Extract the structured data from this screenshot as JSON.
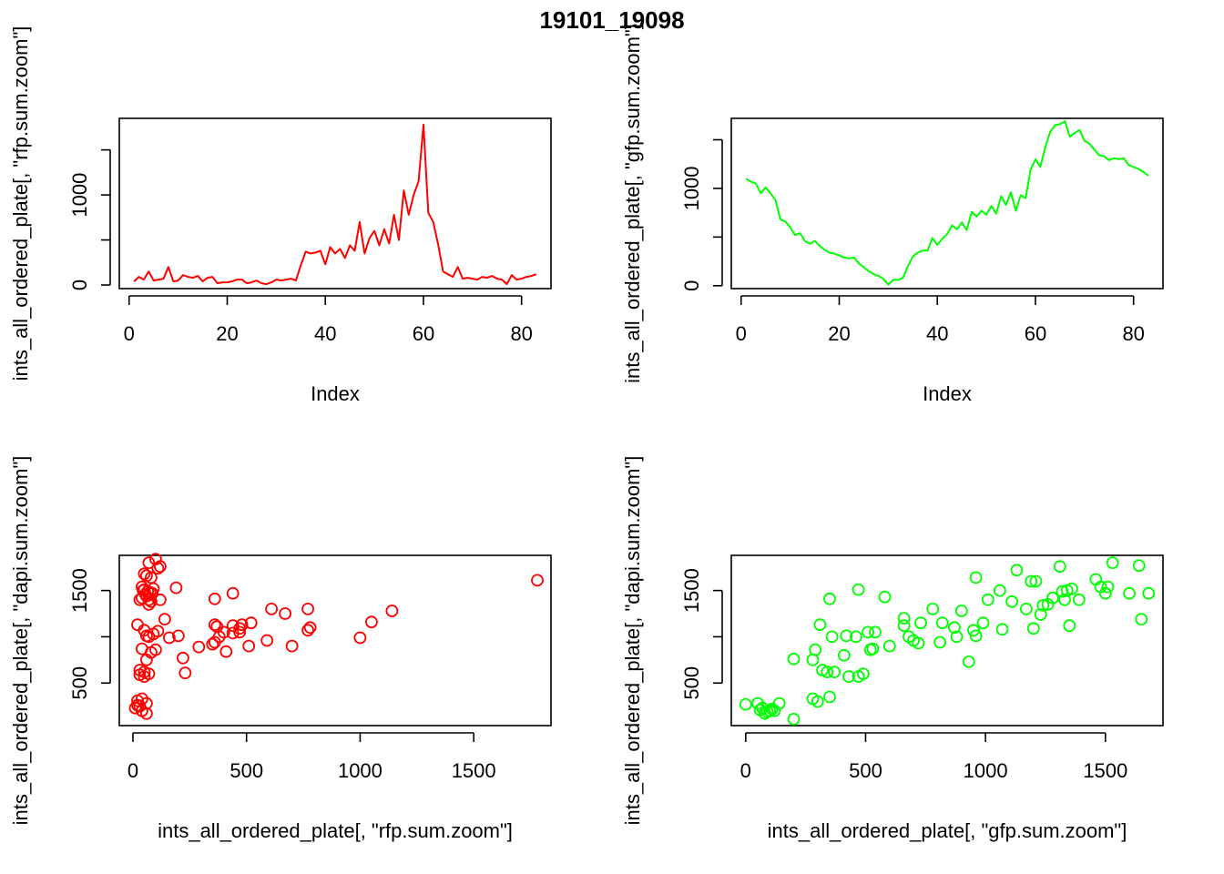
{
  "figure": {
    "title": "19101_19098"
  },
  "chart_data": [
    {
      "id": "rfp-line",
      "type": "line",
      "color": "#ff0000",
      "xlabel": "Index",
      "ylabel": "ints_all_ordered_plate[, \"rfp.sum.zoom\"]",
      "xlim": [
        -2,
        86
      ],
      "ylim": [
        -40,
        1850
      ],
      "xticks": [
        0,
        20,
        40,
        60,
        80
      ],
      "yticks": [
        0,
        1000
      ],
      "yticks_unlabeled": [
        500,
        1500
      ],
      "series": [
        {
          "x": [
            1,
            2,
            3,
            4,
            5,
            6,
            7,
            8,
            9,
            10,
            11,
            12,
            13,
            14,
            15,
            16,
            17,
            18,
            19,
            20,
            21,
            22,
            23,
            24,
            25,
            26,
            27,
            28,
            29,
            30,
            31,
            32,
            33,
            34,
            35,
            36,
            37,
            38,
            39,
            40,
            41,
            42,
            43,
            44,
            45,
            46,
            47,
            48,
            49,
            50,
            51,
            52,
            53,
            54,
            55,
            56,
            57,
            58,
            59,
            60,
            61,
            62,
            63,
            64,
            65,
            66,
            67,
            68,
            69,
            70,
            71,
            72,
            73,
            74,
            75,
            76,
            77,
            78,
            79,
            80,
            81,
            82,
            83
          ],
          "values": [
            40,
            90,
            60,
            150,
            50,
            60,
            70,
            200,
            40,
            50,
            110,
            90,
            80,
            100,
            40,
            80,
            90,
            20,
            30,
            30,
            40,
            60,
            60,
            20,
            30,
            50,
            20,
            10,
            30,
            60,
            50,
            60,
            70,
            50,
            220,
            370,
            350,
            360,
            380,
            230,
            420,
            350,
            400,
            300,
            440,
            380,
            700,
            350,
            520,
            600,
            440,
            620,
            460,
            780,
            500,
            1050,
            780,
            1000,
            1150,
            1780,
            800,
            700,
            450,
            150,
            120,
            90,
            200,
            70,
            80,
            70,
            60,
            90,
            80,
            100,
            70,
            60,
            10,
            110,
            60,
            70,
            90,
            100,
            120
          ]
        }
      ]
    },
    {
      "id": "gfp-line",
      "type": "line",
      "color": "#00ff00",
      "xlabel": "Index",
      "ylabel": "ints_all_ordered_plate[, \"gfp.sum.zoom\"]",
      "xlim": [
        -2,
        86
      ],
      "ylim": [
        -30,
        1720
      ],
      "xticks": [
        0,
        20,
        40,
        60,
        80
      ],
      "yticks": [
        0,
        1000
      ],
      "yticks_unlabeled": [
        500,
        1500
      ],
      "series": [
        {
          "x": [
            1,
            2,
            3,
            4,
            5,
            6,
            7,
            8,
            9,
            10,
            11,
            12,
            13,
            14,
            15,
            16,
            17,
            18,
            19,
            20,
            21,
            22,
            23,
            24,
            25,
            26,
            27,
            28,
            29,
            30,
            31,
            32,
            33,
            34,
            35,
            36,
            37,
            38,
            39,
            40,
            41,
            42,
            43,
            44,
            45,
            46,
            47,
            48,
            49,
            50,
            51,
            52,
            53,
            54,
            55,
            56,
            57,
            58,
            59,
            60,
            61,
            62,
            63,
            64,
            65,
            66,
            67,
            68,
            69,
            70,
            71,
            72,
            73,
            74,
            75,
            76,
            77,
            78,
            79,
            80,
            81,
            82,
            83
          ],
          "values": [
            1100,
            1070,
            1050,
            950,
            1010,
            950,
            880,
            680,
            660,
            600,
            520,
            540,
            460,
            430,
            460,
            410,
            370,
            340,
            330,
            310,
            290,
            280,
            290,
            230,
            190,
            150,
            120,
            100,
            70,
            10,
            60,
            60,
            80,
            200,
            300,
            340,
            360,
            360,
            490,
            420,
            480,
            530,
            620,
            580,
            650,
            570,
            760,
            710,
            770,
            730,
            820,
            740,
            920,
            830,
            960,
            770,
            930,
            900,
            1190,
            1300,
            1220,
            1420,
            1580,
            1650,
            1660,
            1690,
            1530,
            1570,
            1600,
            1490,
            1460,
            1400,
            1340,
            1330,
            1290,
            1310,
            1300,
            1310,
            1240,
            1220,
            1200,
            1170,
            1130
          ]
        }
      ]
    },
    {
      "id": "rfp-scatter",
      "type": "scatter",
      "color": "#ff0000",
      "xlabel": "ints_all_ordered_plate[, \"rfp.sum.zoom\"]",
      "ylabel": "ints_all_ordered_plate[, \"dapi.sum.zoom\"]",
      "xlim": [
        -60,
        1840
      ],
      "ylim": [
        40,
        1880
      ],
      "xticks": [
        0,
        500,
        1000,
        1500
      ],
      "yticks": [
        500,
        1500
      ],
      "yticks_unlabeled": [
        1000
      ],
      "series": [
        {
          "x": [
            1780,
            100,
            70,
            120,
            110,
            50,
            60,
            80,
            40,
            90,
            50,
            45,
            65,
            75,
            85,
            55,
            60,
            40,
            70,
            120,
            190,
            30,
            80,
            70,
            140,
            20,
            110,
            160,
            70,
            60,
            50,
            90,
            40,
            100,
            80,
            60,
            30,
            50,
            70,
            30,
            50,
            20,
            40,
            60,
            20,
            30,
            10,
            40,
            60,
            1140,
            1050,
            1000,
            780,
            770,
            770,
            700,
            670,
            610,
            590,
            520,
            510,
            480,
            470,
            470,
            440,
            440,
            440,
            410,
            400,
            380,
            370,
            360,
            360,
            360,
            350,
            290,
            230,
            220,
            200
          ],
          "values": [
            1610,
            1840,
            1800,
            1760,
            1740,
            1680,
            1660,
            1640,
            1540,
            1520,
            1510,
            1500,
            1490,
            1480,
            1470,
            1460,
            1440,
            1420,
            1400,
            1400,
            1530,
            1400,
            1380,
            1350,
            1190,
            1130,
            1060,
            990,
            1000,
            1010,
            1070,
            1030,
            870,
            860,
            830,
            750,
            640,
            620,
            600,
            590,
            570,
            310,
            330,
            280,
            260,
            250,
            230,
            200,
            170,
            1280,
            1160,
            990,
            1100,
            1070,
            1300,
            900,
            1250,
            1300,
            960,
            1150,
            900,
            1130,
            1090,
            1050,
            1470,
            1120,
            1040,
            840,
            1050,
            1000,
            1110,
            1130,
            1410,
            940,
            920,
            890,
            610,
            770,
            1010
          ]
        }
      ]
    },
    {
      "id": "gfp-scatter",
      "type": "scatter",
      "color": "#00ff00",
      "xlabel": "ints_all_ordered_plate[, \"gfp.sum.zoom\"]",
      "ylabel": "ints_all_ordered_plate[, \"dapi.sum.zoom\"]",
      "xlim": [
        -60,
        1740
      ],
      "ylim": [
        40,
        1880
      ],
      "xticks": [
        0,
        500,
        1000,
        1500
      ],
      "yticks": [
        500,
        1500
      ],
      "yticks_unlabeled": [
        1000
      ],
      "series": [
        {
          "x": [
            0,
            50,
            60,
            70,
            80,
            90,
            100,
            110,
            120,
            140,
            200,
            200,
            280,
            280,
            290,
            300,
            310,
            320,
            340,
            350,
            350,
            360,
            370,
            410,
            420,
            430,
            460,
            470,
            470,
            490,
            510,
            520,
            530,
            540,
            580,
            600,
            660,
            660,
            680,
            700,
            720,
            730,
            780,
            810,
            820,
            870,
            880,
            900,
            930,
            950,
            960,
            960,
            990,
            1010,
            1060,
            1070,
            1110,
            1130,
            1170,
            1190,
            1200,
            1210,
            1230,
            1240,
            1260,
            1280,
            1310,
            1320,
            1330,
            1340,
            1350,
            1360,
            1390,
            1460,
            1480,
            1500,
            1510,
            1530,
            1600,
            1640,
            1650,
            1680
          ],
          "values": [
            270,
            280,
            210,
            230,
            170,
            190,
            200,
            220,
            200,
            280,
            110,
            760,
            750,
            330,
            860,
            300,
            1130,
            640,
            620,
            350,
            1410,
            1000,
            620,
            800,
            1010,
            570,
            1000,
            570,
            1510,
            600,
            1050,
            860,
            870,
            1050,
            1430,
            900,
            1120,
            1200,
            1000,
            960,
            930,
            1150,
            1300,
            940,
            1150,
            1100,
            1000,
            1280,
            730,
            1070,
            1640,
            1010,
            1150,
            1400,
            1500,
            1080,
            1380,
            1720,
            1300,
            1600,
            1090,
            1600,
            1240,
            1340,
            1350,
            1420,
            1760,
            1490,
            1400,
            1500,
            1120,
            1520,
            1400,
            1620,
            1540,
            1470,
            1540,
            1800,
            1470,
            1770,
            1190,
            1470
          ]
        }
      ]
    }
  ]
}
